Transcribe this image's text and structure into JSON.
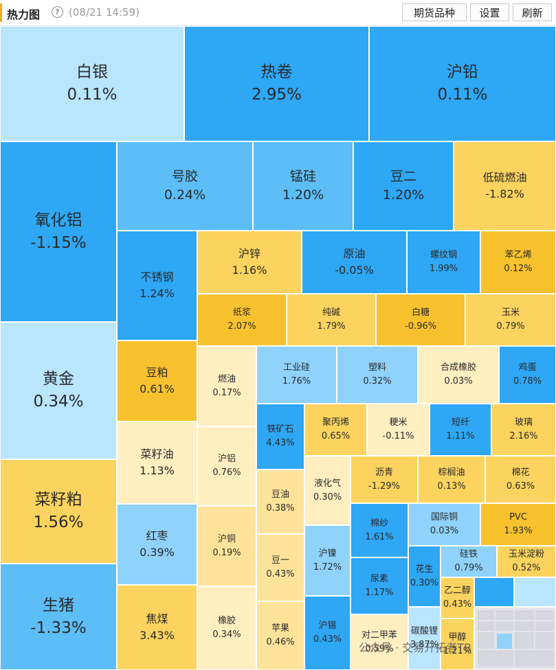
{
  "header": {
    "title": "热力图",
    "help_icon": "?",
    "timestamp": "(08/21 14:59)",
    "buttons": [
      "期货品种",
      "设置",
      "刷新"
    ]
  },
  "colors": {
    "deep_blue": "#2ea7f5",
    "mid_blue": "#5cbdf7",
    "light_blue": "#8fd2fb",
    "pale_blue": "#b9e5fd",
    "deep_yellow": "#f8c12e",
    "mid_yellow": "#fbd35e",
    "light_yellow": "#fde39a",
    "pale_yellow": "#feeec0",
    "empty": "#e4e4ea"
  },
  "cells": [
    {
      "name": "白银",
      "value": "0.11%"
    },
    {
      "name": "热卷",
      "value": "2.95%"
    },
    {
      "name": "沪铅",
      "value": "0.11%"
    },
    {
      "name": "氧化铝",
      "value": "-1.15%"
    },
    {
      "name": "黄金",
      "value": "0.34%"
    },
    {
      "name": "菜籽粕",
      "value": "1.56%"
    },
    {
      "name": "生猪",
      "value": "-1.33%"
    },
    {
      "name": "号胶",
      "value": "0.24%"
    },
    {
      "name": "锰硅",
      "value": "1.20%"
    },
    {
      "name": "豆二",
      "value": "1.20%"
    },
    {
      "name": "低硫燃油",
      "value": "-1.82%"
    },
    {
      "name": "不锈钢",
      "value": "1.24%"
    },
    {
      "name": "豆粕",
      "value": "0.61%"
    },
    {
      "name": "菜籽油",
      "value": "1.13%"
    },
    {
      "name": "红枣",
      "value": "0.39%"
    },
    {
      "name": "焦煤",
      "value": "3.43%"
    },
    {
      "name": "沪锌",
      "value": "1.16%"
    },
    {
      "name": "原油",
      "value": "-0.05%"
    },
    {
      "name": "螺纹钢",
      "value": "1.99%"
    },
    {
      "name": "苯乙烯",
      "value": "0.12%"
    },
    {
      "name": "纸浆",
      "value": "2.07%"
    },
    {
      "name": "纯碱",
      "value": "1.79%"
    },
    {
      "name": "白糖",
      "value": "-0.96%"
    },
    {
      "name": "玉米",
      "value": "0.79%"
    },
    {
      "name": "燃油",
      "value": "0.17%"
    },
    {
      "name": "工业硅",
      "value": "1.76%"
    },
    {
      "name": "塑料",
      "value": "0.32%"
    },
    {
      "name": "合成橡胶",
      "value": "0.03%"
    },
    {
      "name": "鸡蛋",
      "value": "0.78%"
    },
    {
      "name": "铁矿石",
      "value": "4.43%"
    },
    {
      "name": "聚丙烯",
      "value": "0.65%"
    },
    {
      "name": "粳米",
      "value": "-0.11%"
    },
    {
      "name": "短纤",
      "value": "1.11%"
    },
    {
      "name": "玻璃",
      "value": "2.16%"
    },
    {
      "name": "沪铝",
      "value": "0.76%"
    },
    {
      "name": "豆油",
      "value": "0.38%"
    },
    {
      "name": "液化气",
      "value": "0.30%"
    },
    {
      "name": "沥青",
      "value": "-1.29%"
    },
    {
      "name": "棕榈油",
      "value": "0.13%"
    },
    {
      "name": "棉花",
      "value": "0.63%"
    },
    {
      "name": "沪铜",
      "value": "0.19%"
    },
    {
      "name": "豆一",
      "value": "0.43%"
    },
    {
      "name": "沪镍",
      "value": "1.72%"
    },
    {
      "name": "棉纱",
      "value": "1.61%"
    },
    {
      "name": "国际铜",
      "value": "0.03%"
    },
    {
      "name": "PVC",
      "value": "1.93%"
    },
    {
      "name": "硅铁",
      "value": "0.79%"
    },
    {
      "name": "玉米淀粉",
      "value": "0.52%"
    },
    {
      "name": "尿素",
      "value": "1.17%"
    },
    {
      "name": "花生",
      "value": "0.30%"
    },
    {
      "name": "乙二醇",
      "value": "0.43%"
    },
    {
      "name": "橡胶",
      "value": "0.34%"
    },
    {
      "name": "苹果",
      "value": "0.46%"
    },
    {
      "name": "沪锡",
      "value": "0.43%"
    },
    {
      "name": "对二甲苯",
      "value": "0.59%"
    },
    {
      "name": "碳酸锂",
      "value": "3.87%"
    },
    {
      "name": "甲醇",
      "value": "1.21%"
    },
    {
      "name": "",
      "value": ""
    },
    {
      "name": "",
      "value": ""
    },
    {
      "name": "",
      "value": ""
    }
  ],
  "watermark": "公众号 · 交易开拓者TB"
}
